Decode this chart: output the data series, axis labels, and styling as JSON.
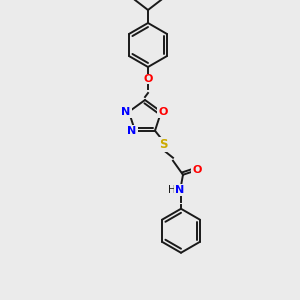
{
  "background_color": "#ebebeb",
  "bond_color": "#1a1a1a",
  "atom_colors": {
    "N": "#0000ff",
    "O": "#ff0000",
    "S": "#ccaa00",
    "C": "#1a1a1a"
  },
  "figsize": [
    3.0,
    3.0
  ],
  "dpi": 100,
  "lw": 1.4,
  "fs": 7.5
}
